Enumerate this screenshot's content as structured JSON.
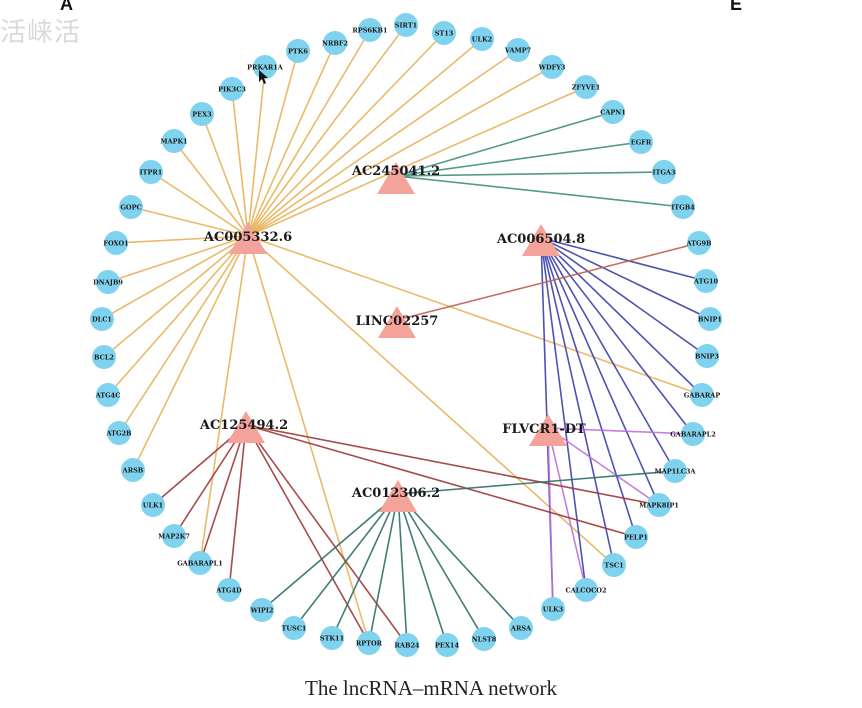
{
  "panel_left": "A",
  "panel_right": "E",
  "watermark": "活崃活",
  "caption": "The lncRNA–mRNA network",
  "colors": {
    "mrna_node": "#7fd3ee",
    "lncrna_node": "#f4a39a",
    "AC005332.6": "#e8b25a",
    "AC245041.2": "#3f8f7a",
    "AC006504.8": "#3b3fa8",
    "LINC02257": "#c0614f",
    "AC125494.2": "#9c3838",
    "FLVCR1-DT": "#c070d8",
    "AC012306.2": "#2e6f66"
  },
  "lncrnas": [
    "AC245041.2",
    "AC005332.6",
    "AC006504.8",
    "LINC02257",
    "AC125494.2",
    "FLVCR1-DT",
    "AC012306.2"
  ],
  "mrnas": [
    "NRBF2",
    "RPS6KB1",
    "SIRT1",
    "ST13",
    "ULK2",
    "VAMP7",
    "WDFY3",
    "ZFYVE1",
    "CAPN1",
    "EGFR",
    "ITGA3",
    "ITGB4",
    "ATG9B",
    "ATG10",
    "BNIP1",
    "BNIP3",
    "GABARAP",
    "GABARAPL2",
    "MAP1LC3A",
    "MAPK8IP1",
    "PELP1",
    "TSC1",
    "CALCOCO2",
    "ULK3",
    "ARSA",
    "NLST8",
    "PEX14",
    "RAB24",
    "RPTOR",
    "STK11",
    "TUSC1",
    "WIPI2",
    "ATG4D",
    "GABARAPL1",
    "MAP2K7",
    "ULK1",
    "ARSB",
    "ATG2B",
    "ATG4C",
    "BCL2",
    "DLC1",
    "DNAJB9",
    "FOXO1",
    "GOPC",
    "ITPR1",
    "MAPK1",
    "PEX3",
    "PIK3C3",
    "PRKAR1A",
    "PTK6"
  ],
  "edges": [
    [
      "AC005332.6",
      "NRBF2"
    ],
    [
      "AC005332.6",
      "RPS6KB1"
    ],
    [
      "AC005332.6",
      "SIRT1"
    ],
    [
      "AC005332.6",
      "ST13"
    ],
    [
      "AC005332.6",
      "ULK2"
    ],
    [
      "AC005332.6",
      "VAMP7"
    ],
    [
      "AC005332.6",
      "WDFY3"
    ],
    [
      "AC005332.6",
      "ZFYVE1"
    ],
    [
      "AC005332.6",
      "PTK6"
    ],
    [
      "AC005332.6",
      "PRKAR1A"
    ],
    [
      "AC005332.6",
      "PIK3C3"
    ],
    [
      "AC005332.6",
      "PEX3"
    ],
    [
      "AC005332.6",
      "MAPK1"
    ],
    [
      "AC005332.6",
      "ITPR1"
    ],
    [
      "AC005332.6",
      "GOPC"
    ],
    [
      "AC005332.6",
      "FOXO1"
    ],
    [
      "AC005332.6",
      "DNAJB9"
    ],
    [
      "AC005332.6",
      "DLC1"
    ],
    [
      "AC005332.6",
      "BCL2"
    ],
    [
      "AC005332.6",
      "ATG4C"
    ],
    [
      "AC005332.6",
      "ATG2B"
    ],
    [
      "AC005332.6",
      "ARSB"
    ],
    [
      "AC005332.6",
      "GABARAPL1"
    ],
    [
      "AC005332.6",
      "RPTOR"
    ],
    [
      "AC005332.6",
      "TSC1"
    ],
    [
      "AC005332.6",
      "GABARAP"
    ],
    [
      "AC245041.2",
      "CAPN1"
    ],
    [
      "AC245041.2",
      "EGFR"
    ],
    [
      "AC245041.2",
      "ITGA3"
    ],
    [
      "AC245041.2",
      "ITGB4"
    ],
    [
      "AC006504.8",
      "ATG10"
    ],
    [
      "AC006504.8",
      "BNIP1"
    ],
    [
      "AC006504.8",
      "BNIP3"
    ],
    [
      "AC006504.8",
      "GABARAP"
    ],
    [
      "AC006504.8",
      "GABARAPL2"
    ],
    [
      "AC006504.8",
      "MAP1LC3A"
    ],
    [
      "AC006504.8",
      "MAPK8IP1"
    ],
    [
      "AC006504.8",
      "PELP1"
    ],
    [
      "AC006504.8",
      "TSC1"
    ],
    [
      "AC006504.8",
      "CALCOCO2"
    ],
    [
      "AC006504.8",
      "ULK3"
    ],
    [
      "LINC02257",
      "ATG9B"
    ],
    [
      "FLVCR1-DT",
      "GABARAPL2"
    ],
    [
      "FLVCR1-DT",
      "MAPK8IP1"
    ],
    [
      "FLVCR1-DT",
      "CALCOCO2"
    ],
    [
      "FLVCR1-DT",
      "ULK3"
    ],
    [
      "AC125494.2",
      "ULK1"
    ],
    [
      "AC125494.2",
      "MAP2K7"
    ],
    [
      "AC125494.2",
      "GABARAPL1"
    ],
    [
      "AC125494.2",
      "ATG4D"
    ],
    [
      "AC125494.2",
      "RPTOR"
    ],
    [
      "AC125494.2",
      "RAB24"
    ],
    [
      "AC125494.2",
      "PELP1"
    ],
    [
      "AC125494.2",
      "MAPK8IP1"
    ],
    [
      "AC012306.2",
      "WIPI2"
    ],
    [
      "AC012306.2",
      "TUSC1"
    ],
    [
      "AC012306.2",
      "STK11"
    ],
    [
      "AC012306.2",
      "RPTOR"
    ],
    [
      "AC012306.2",
      "RAB24"
    ],
    [
      "AC012306.2",
      "PEX14"
    ],
    [
      "AC012306.2",
      "NLST8"
    ],
    [
      "AC012306.2",
      "ARSA"
    ],
    [
      "AC012306.2",
      "MAP1LC3A"
    ]
  ]
}
